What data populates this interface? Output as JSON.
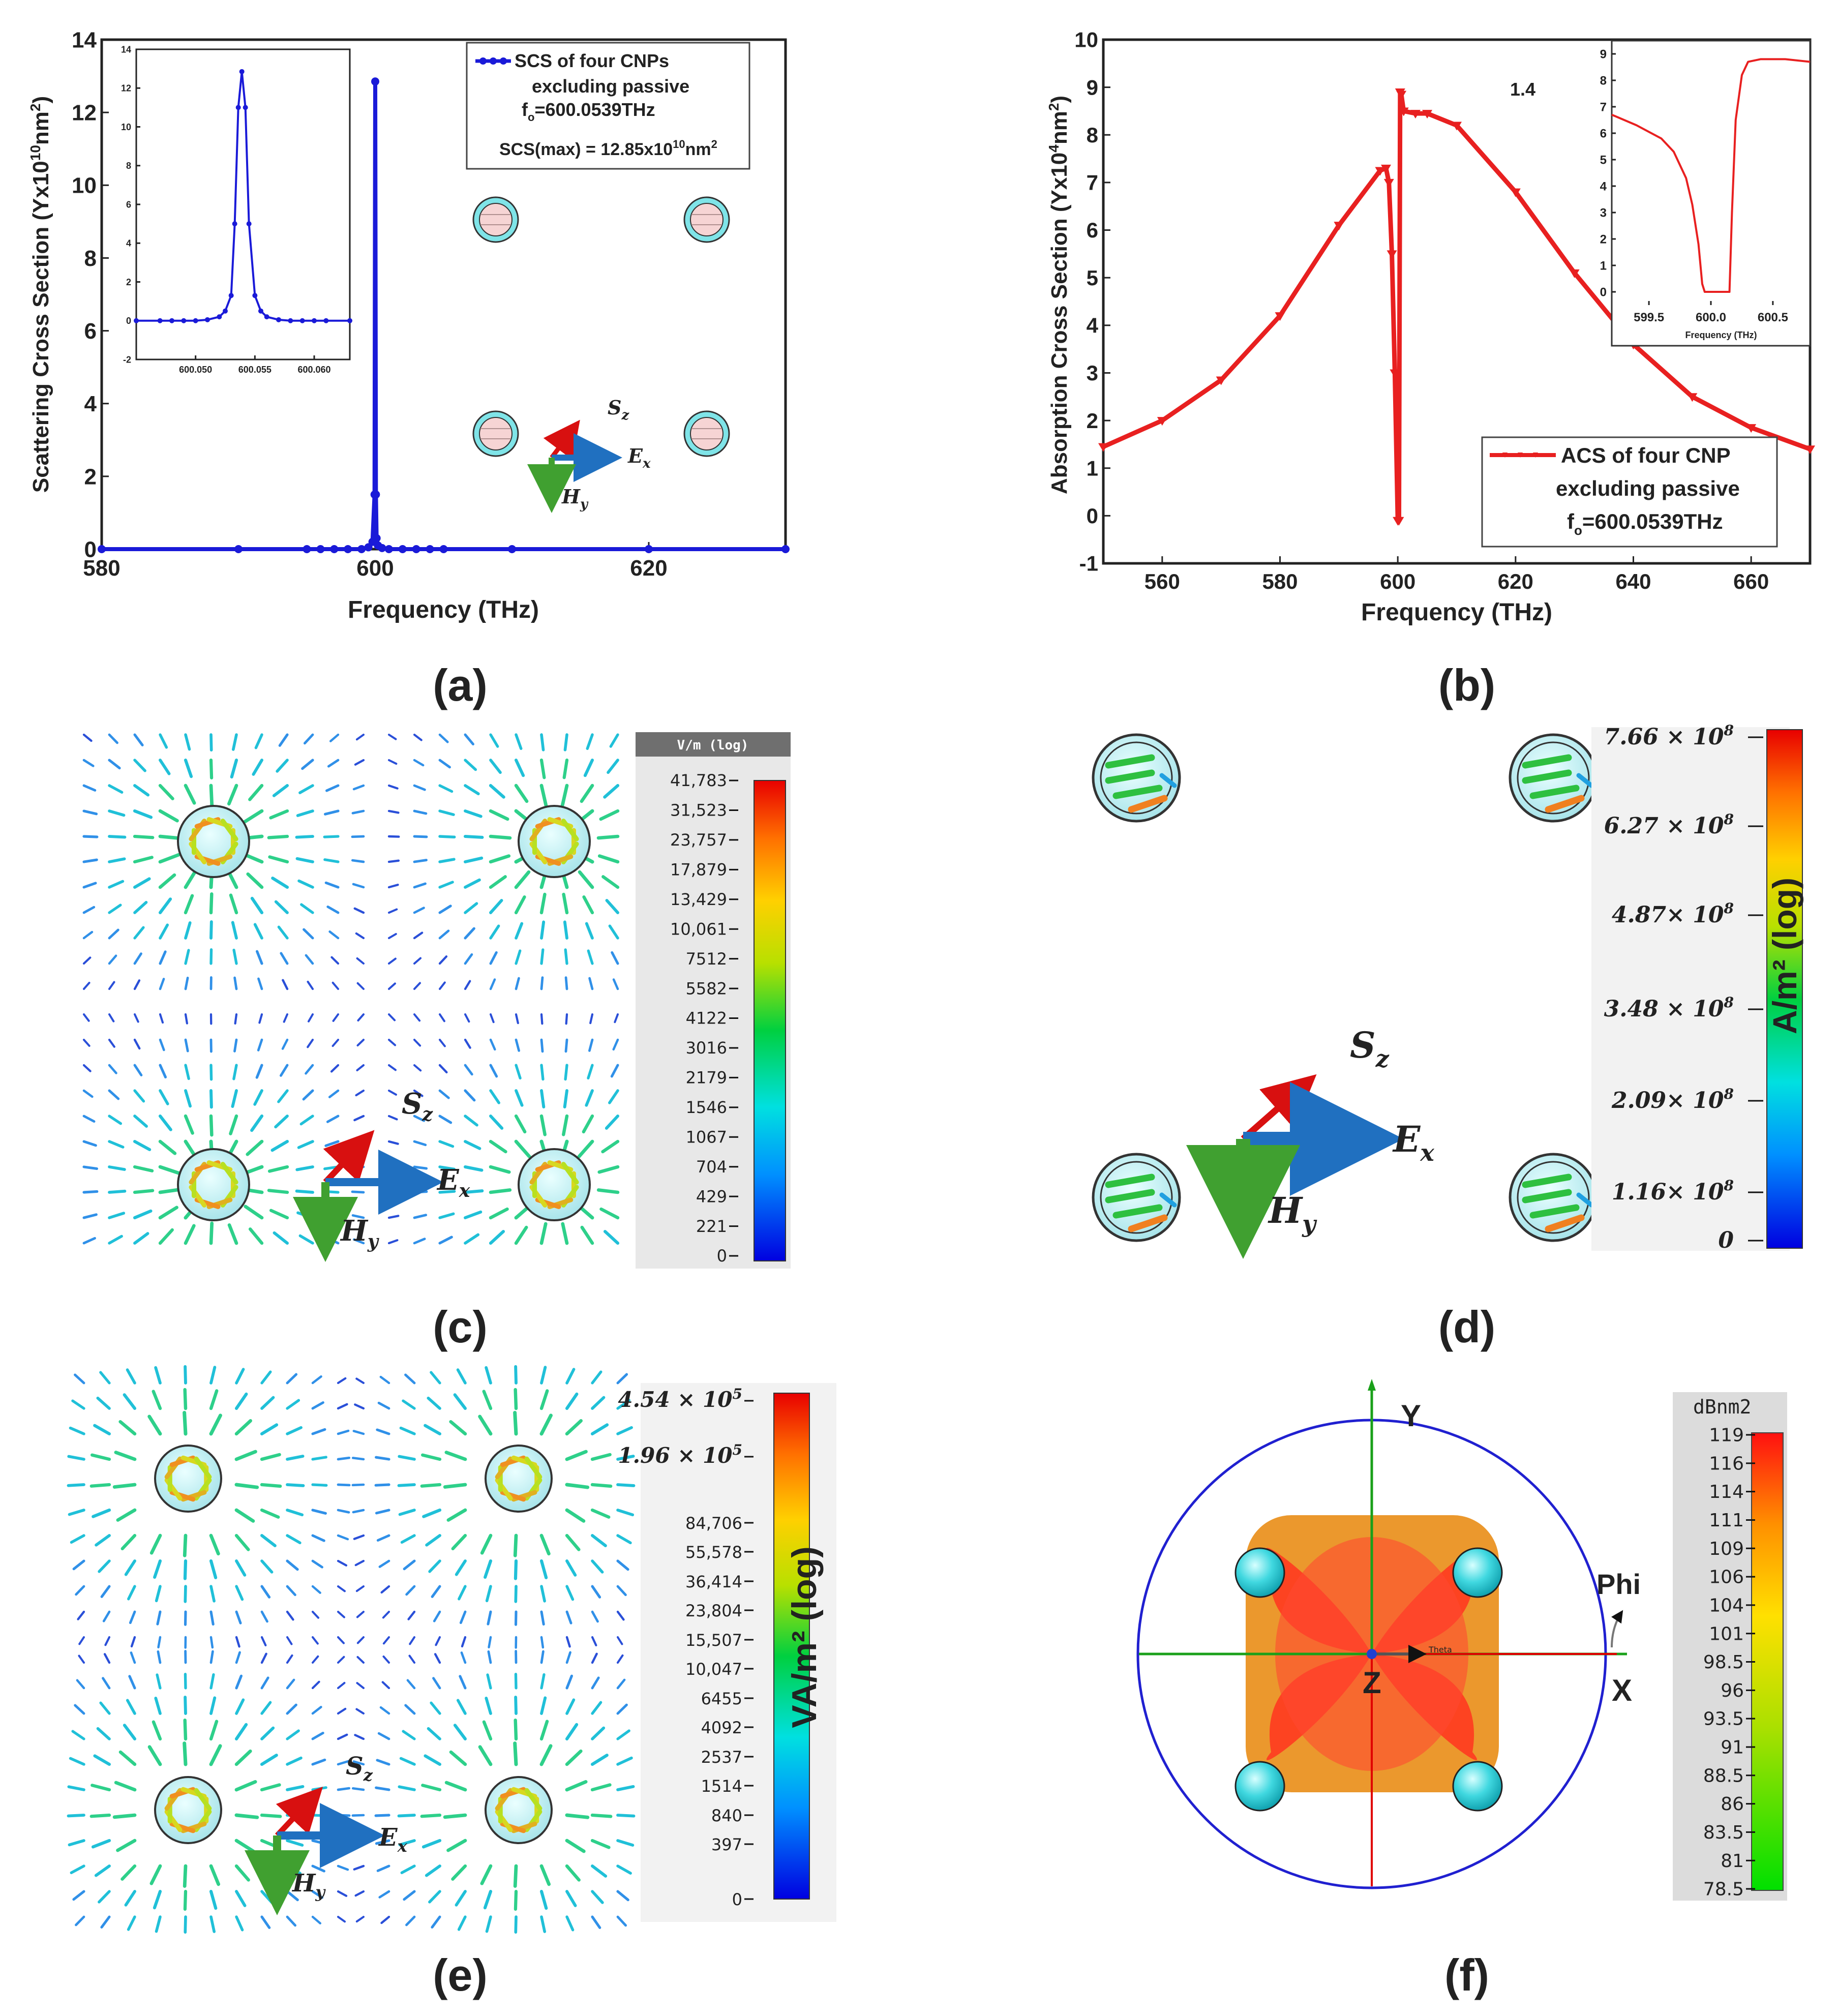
{
  "panel_labels": [
    "(a)",
    "(b)",
    "(c)",
    "(d)",
    "(e)",
    "(f)"
  ],
  "chart_data": [
    {
      "id": "a",
      "type": "line",
      "xlabel": "Frequency (THz)",
      "ylabel": "Scattering Cross Section (Yx10",
      "ylabel_sup": "10",
      "ylabel_tail": "nm",
      "xlim": [
        580,
        630
      ],
      "ylim": [
        0,
        14
      ],
      "xticks": [
        580,
        600,
        620
      ],
      "yticks": [
        0,
        2,
        4,
        6,
        8,
        10,
        12,
        14
      ],
      "series": [
        {
          "name": "SCS of four CNPs excluding passive",
          "color": "#1a1ad8",
          "x": [
            580,
            590,
            595,
            596,
            597,
            598,
            599,
            599.5,
            599.8,
            599.95,
            600.0,
            600.05,
            600.1,
            600.2,
            600.5,
            601,
            602,
            603,
            604,
            605,
            610,
            620,
            630
          ],
          "y": [
            0,
            0,
            0,
            0,
            0,
            0,
            0,
            0.05,
            0.2,
            1.5,
            12.85,
            1.5,
            0.3,
            0.1,
            0.03,
            0,
            0,
            0,
            0,
            0,
            0,
            0,
            0
          ]
        }
      ],
      "legend": {
        "line1": "SCS of four CNPs",
        "line2": "excluding passive",
        "line3": "f",
        "line3_sub": "o",
        "line3_tail": "=600.0539THz",
        "line4": "SCS(max) = 12.85x10",
        "line4_sup": "10",
        "line4_tail": "nm"
      },
      "inset": {
        "xlim": [
          600.045,
          600.063
        ],
        "ylim": [
          -2,
          14
        ],
        "xticks": [
          "600.050",
          "600.055",
          "600.060"
        ],
        "xtick_values": [
          600.05,
          600.055,
          600.06
        ],
        "yticks": [
          -2,
          0,
          2,
          4,
          6,
          8,
          10,
          12,
          14
        ],
        "x": [
          600.045,
          600.047,
          600.048,
          600.049,
          600.05,
          600.051,
          600.052,
          600.0525,
          600.053,
          600.0533,
          600.0536,
          600.0539,
          600.0542,
          600.0545,
          600.055,
          600.0555,
          600.056,
          600.057,
          600.058,
          600.059,
          600.06,
          600.061,
          600.063
        ],
        "y": [
          0,
          0,
          0,
          0,
          0,
          0.05,
          0.2,
          0.5,
          1.3,
          5,
          11,
          12.85,
          11,
          5,
          1.3,
          0.5,
          0.2,
          0.05,
          0,
          0,
          0,
          0,
          0
        ]
      },
      "schematic_labels": {
        "s": "S",
        "s_sub": "z",
        "e": "E",
        "e_sub": "x",
        "h": "H",
        "h_sub": "y"
      }
    },
    {
      "id": "b",
      "type": "line",
      "xlabel": "Frequency (THz)",
      "ylabel": "Absorption Cross Section (Yx10",
      "ylabel_sup": "4",
      "ylabel_tail": "nm",
      "xlim": [
        550,
        670
      ],
      "ylim": [
        -1,
        10
      ],
      "xticks": [
        560,
        580,
        600,
        620,
        640,
        660
      ],
      "yticks": [
        -1,
        0,
        1,
        2,
        3,
        4,
        5,
        6,
        7,
        8,
        9,
        10
      ],
      "annotation": "1.4",
      "series": [
        {
          "name": "ACS of four CNP excluding passive",
          "color": "#e82020",
          "x": [
            550,
            560,
            570,
            580,
            590,
            597,
            598,
            598.5,
            599,
            599.5,
            600,
            600.2,
            600.4,
            600.6,
            601,
            603,
            605,
            610,
            620,
            630,
            640,
            650,
            660,
            670
          ],
          "y": [
            1.45,
            2.0,
            2.85,
            4.2,
            6.1,
            7.25,
            7.3,
            7.0,
            5.5,
            3.0,
            -0.1,
            -0.1,
            8.9,
            8.85,
            8.5,
            8.45,
            8.45,
            8.2,
            6.8,
            5.1,
            3.6,
            2.5,
            1.85,
            1.4
          ]
        }
      ],
      "legend": {
        "line1": "ACS of four CNP",
        "line2": "excluding passive",
        "line3": "f",
        "line3_sub": "o",
        "line3_tail": "=600.0539THz"
      },
      "inset": {
        "xlim": [
          599.2,
          600.8
        ],
        "ylim": [
          -0.5,
          9.5
        ],
        "xlabel": "Frequency (THz)",
        "xticks": [
          "599.5",
          "600.0",
          "600.5"
        ],
        "xtick_values": [
          599.5,
          600.0,
          600.5
        ],
        "yticks": [
          0,
          1,
          2,
          3,
          4,
          5,
          6,
          7,
          8,
          9
        ],
        "x": [
          599.2,
          599.4,
          599.6,
          599.7,
          599.8,
          599.85,
          599.9,
          599.93,
          599.95,
          600.0,
          600.1,
          600.15,
          600.17,
          600.2,
          600.25,
          600.3,
          600.4,
          600.5,
          600.6,
          600.8
        ],
        "y": [
          6.7,
          6.3,
          5.8,
          5.3,
          4.3,
          3.3,
          1.8,
          0.3,
          0,
          0,
          0,
          0,
          3,
          6.5,
          8.2,
          8.7,
          8.8,
          8.8,
          8.8,
          8.7
        ]
      }
    },
    {
      "id": "c",
      "type": "heatmap",
      "colorbar_title": "V/m (log)",
      "colorbar_ticks": [
        "41,783",
        "31,523",
        "23,757",
        "17,879",
        "13,429",
        "10,061",
        "7512",
        "5582",
        "4122",
        "3016",
        "2179",
        "1546",
        "1067",
        "704",
        "429",
        "221",
        "0"
      ],
      "schematic_labels": {
        "s": "S",
        "s_sub": "z",
        "e": "E",
        "e_sub": "x",
        "h": "H",
        "h_sub": "y"
      }
    },
    {
      "id": "d",
      "type": "heatmap",
      "colorbar_title": "A/m² (log)",
      "colorbar_ticks": [
        "7.66 × 10",
        "6.27 × 10",
        "4.87× 10",
        "3.48 × 10",
        "2.09× 10",
        "1.16× 10",
        "0"
      ],
      "colorbar_exp": "8",
      "schematic_labels": {
        "s": "S",
        "s_sub": "z",
        "e": "E",
        "e_sub": "x",
        "h": "H",
        "h_sub": "y"
      }
    },
    {
      "id": "e",
      "type": "heatmap",
      "colorbar_title": "VA/m² (log)",
      "colorbar_ticks": [
        "4.54 × 10",
        "1.96 × 10",
        "84,706",
        "55,578",
        "36,414",
        "23,804",
        "15,507",
        "10,047",
        "6455",
        "4092",
        "2537",
        "1514",
        "840",
        "397",
        "0"
      ],
      "colorbar_exp": "5",
      "schematic_labels": {
        "s": "S",
        "s_sub": "z",
        "e": "E",
        "e_sub": "x",
        "h": "H",
        "h_sub": "y"
      }
    },
    {
      "id": "f",
      "type": "heatmap",
      "colorbar_title": "dBnm2",
      "colorbar_ticks": [
        "119",
        "116",
        "114",
        "111",
        "109",
        "106",
        "104",
        "101",
        "98.5",
        "96",
        "93.5",
        "91",
        "88.5",
        "86",
        "83.5",
        "81",
        "78.5"
      ],
      "axis_labels": {
        "y": "Y",
        "x": "X",
        "z": "Z",
        "phi": "Phi",
        "theta": "Theta"
      }
    }
  ],
  "colors": {
    "blue": "#1a1ad8",
    "red": "#e82020",
    "cyan": "#7fe4e8",
    "pink": "#f6d4d4"
  }
}
